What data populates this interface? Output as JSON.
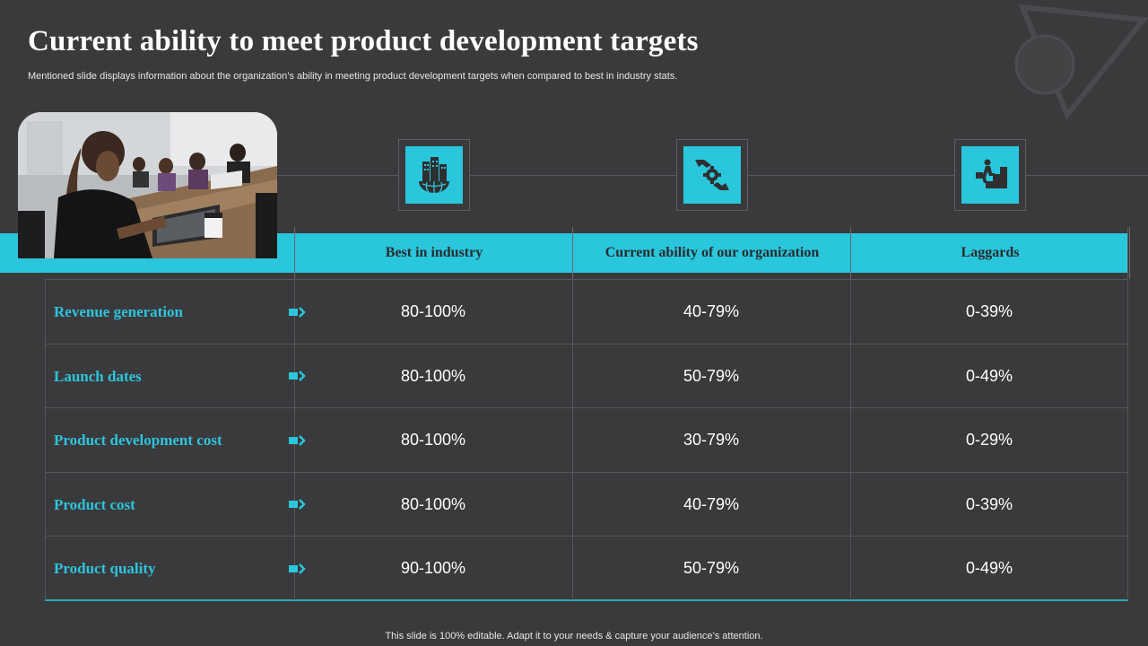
{
  "page": {
    "title": "Current ability to meet product development targets",
    "subtitle": "Mentioned slide displays information about the organization’s ability in meeting product development targets when compared to best in industry stats.",
    "footer": "This slide is 100% editable. Adapt it to your needs & capture your audience’s attention."
  },
  "colors": {
    "accent": "#29c6dc",
    "background": "#3a3a3c",
    "label": "#2ec4dc"
  },
  "icons": [
    "building-globe-icon",
    "hands-gear-icon",
    "person-climbing-stairs-icon"
  ],
  "table": {
    "headers": [
      "Best in industry",
      "Current ability of our organization",
      "Laggards"
    ],
    "rows": [
      {
        "label": "Revenue generation",
        "values": [
          "80-100%",
          "40-79%",
          "0-39%"
        ]
      },
      {
        "label": "Launch dates",
        "values": [
          "80-100%",
          "50-79%",
          "0-49%"
        ]
      },
      {
        "label": "Product development cost",
        "values": [
          "80-100%",
          "30-79%",
          "0-29%"
        ]
      },
      {
        "label": "Product cost",
        "values": [
          "80-100%",
          "40-79%",
          "0-39%"
        ]
      },
      {
        "label": "Product quality",
        "values": [
          "90-100%",
          "50-79%",
          "0-49%"
        ]
      }
    ]
  }
}
